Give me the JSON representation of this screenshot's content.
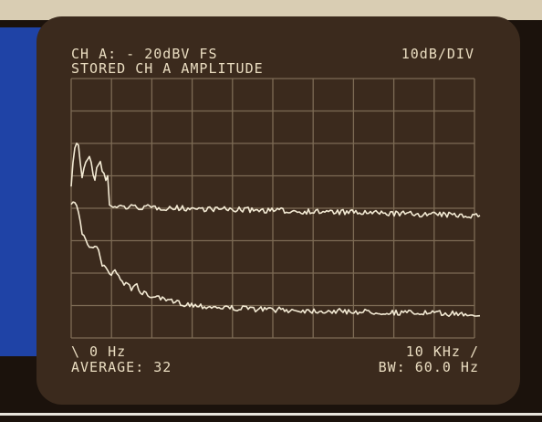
{
  "screen": {
    "header": {
      "channel": "CH A: - 20dBV  FS",
      "scale": "10dB/DIV",
      "mode": "STORED CH A AMPLITUDE"
    },
    "footer": {
      "start": "\\ 0 Hz",
      "stop": "10 KHz /",
      "average": "AVERAGE:  32",
      "bandwidth": "BW: 60.0 Hz"
    }
  }
}
